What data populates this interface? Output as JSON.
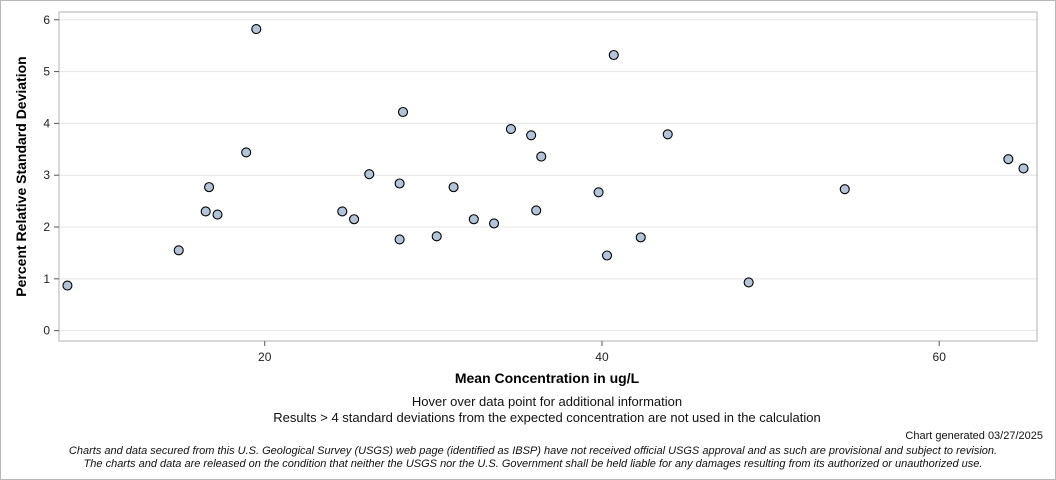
{
  "chart_data": {
    "type": "scatter",
    "title": "",
    "xlabel": "Mean Concentration in ug/L",
    "ylabel": "Percent Relative Standard Deviation",
    "xlim": [
      7.8,
      65.8
    ],
    "ylim": [
      -0.2,
      6.15
    ],
    "xticks": [
      20,
      40,
      60
    ],
    "yticks": [
      0,
      1,
      2,
      3,
      4,
      5,
      6
    ],
    "grid": true,
    "marker_color": "#b4c4d8",
    "marker_edge": "#000000",
    "points": [
      {
        "x": 8.3,
        "y": 0.87
      },
      {
        "x": 14.9,
        "y": 1.55
      },
      {
        "x": 16.5,
        "y": 2.3
      },
      {
        "x": 16.7,
        "y": 2.77
      },
      {
        "x": 17.2,
        "y": 2.24
      },
      {
        "x": 18.9,
        "y": 3.44
      },
      {
        "x": 19.5,
        "y": 5.82
      },
      {
        "x": 24.6,
        "y": 2.3
      },
      {
        "x": 25.3,
        "y": 2.15
      },
      {
        "x": 26.2,
        "y": 3.02
      },
      {
        "x": 28.0,
        "y": 2.84
      },
      {
        "x": 28.0,
        "y": 1.76
      },
      {
        "x": 28.2,
        "y": 4.22
      },
      {
        "x": 30.2,
        "y": 1.82
      },
      {
        "x": 31.2,
        "y": 2.77
      },
      {
        "x": 32.4,
        "y": 2.15
      },
      {
        "x": 33.6,
        "y": 2.07
      },
      {
        "x": 34.6,
        "y": 3.89
      },
      {
        "x": 35.8,
        "y": 3.77
      },
      {
        "x": 36.1,
        "y": 2.32
      },
      {
        "x": 36.4,
        "y": 3.36
      },
      {
        "x": 39.8,
        "y": 2.67
      },
      {
        "x": 40.3,
        "y": 1.45
      },
      {
        "x": 40.7,
        "y": 5.32
      },
      {
        "x": 42.3,
        "y": 1.8
      },
      {
        "x": 43.9,
        "y": 3.79
      },
      {
        "x": 48.7,
        "y": 0.93
      },
      {
        "x": 54.4,
        "y": 2.73
      },
      {
        "x": 64.1,
        "y": 3.31
      },
      {
        "x": 65.0,
        "y": 3.13
      }
    ]
  },
  "notes": {
    "hover": "Hover over data point for additional information",
    "results": "Results > 4 standard deviations from the expected concentration are not used in the calculation",
    "generated": "Chart generated 03/27/2025",
    "disclaimer_1": "Charts and data secured from this U.S. Geological Survey (USGS) web page (identified as IBSP) have not received official USGS approval and as such are provisional and subject to revision.",
    "disclaimer_2": "The charts and data are released on the condition that neither the USGS nor the U.S. Government shall be held liable for any damages resulting from its authorized or unauthorized use."
  }
}
